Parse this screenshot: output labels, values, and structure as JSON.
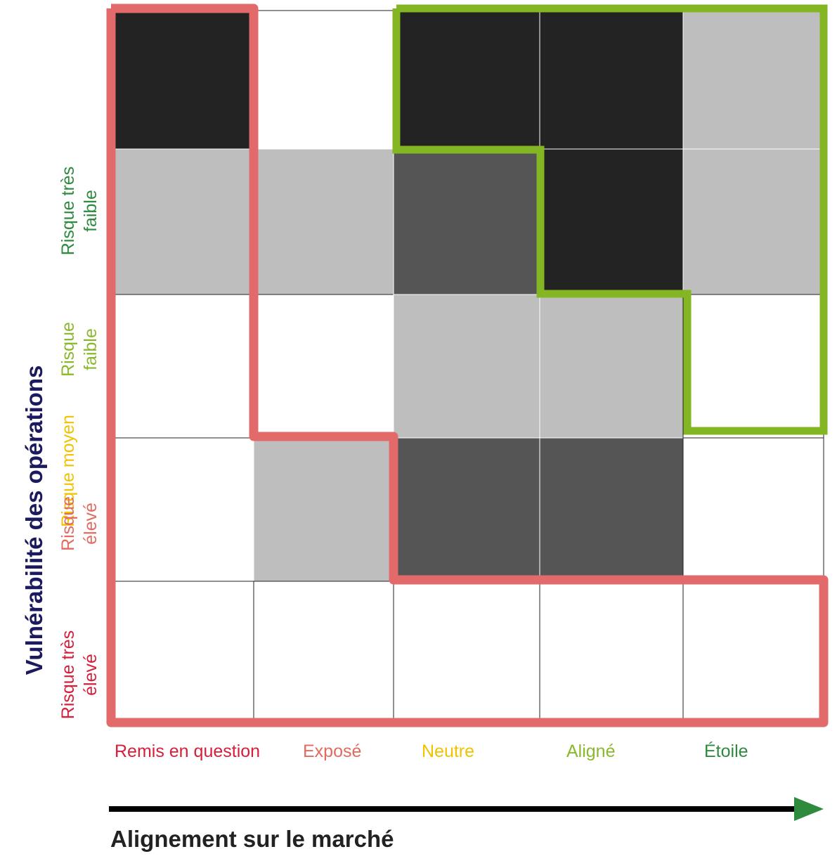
{
  "y_axis_title": "Vulnérabilité des opérations",
  "x_axis_title": "Alignement sur le marché",
  "rows": [
    {
      "label": "Risque très\nfaible",
      "color": "#2e8b3e"
    },
    {
      "label": "Risque\nfaible",
      "color": "#8ab82d"
    },
    {
      "label": "Risque moyen",
      "color": "#f2c200"
    },
    {
      "label": "Risque\nélevé",
      "color": "#e36a5e"
    },
    {
      "label": "Risque très\nélevé",
      "color": "#d61f3a"
    }
  ],
  "columns": [
    {
      "label": "Remis en question",
      "color": "#d61f3a"
    },
    {
      "label": "Exposé",
      "color": "#e36a5e"
    },
    {
      "label": "Neutre",
      "color": "#f2c200"
    },
    {
      "label": "Aligné",
      "color": "#8ab82d"
    },
    {
      "label": "Étoile",
      "color": "#2e8b3e"
    }
  ],
  "cell_shades": [
    [
      "black",
      "white",
      "black",
      "black",
      "light"
    ],
    [
      "light",
      "light",
      "dark",
      "black",
      "light"
    ],
    [
      "white",
      "white",
      "light",
      "light",
      "white"
    ],
    [
      "white",
      "light",
      "dark",
      "dark",
      "white"
    ],
    [
      "white",
      "white",
      "white",
      "white",
      "white"
    ]
  ],
  "colors": {
    "black": "#232323",
    "dark": "#555555",
    "light": "#bebebe",
    "white": "#ffffff",
    "red_outline": "#e36a6a",
    "green_outline": "#84b522",
    "arrow_shaft": "#000000",
    "arrow_head": "#2e8b3e"
  }
}
